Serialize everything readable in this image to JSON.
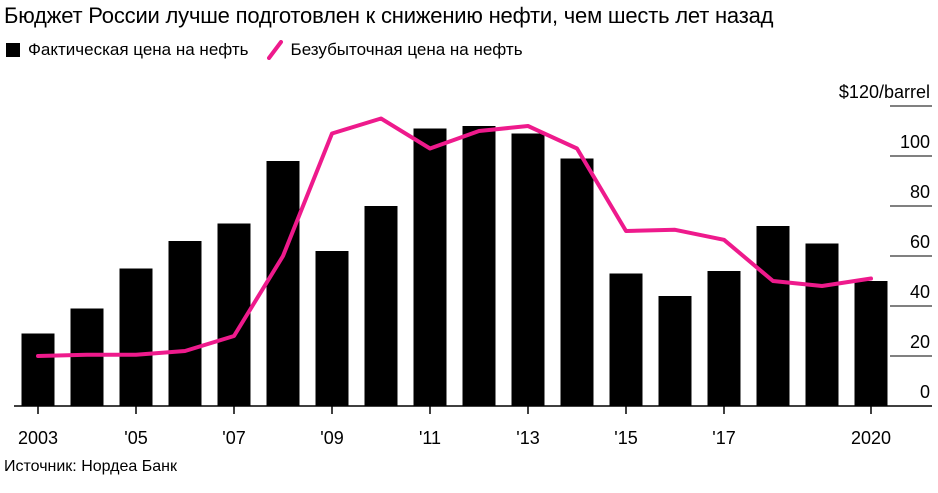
{
  "title": "Бюджет России лучше подготовлен к снижению нефти, чем шесть лет назад",
  "legend": {
    "bar_label": "Фактическая цена на нефть",
    "line_label": "Безубыточная цена на нефть"
  },
  "source": "Источник: Нордеа Банк",
  "colors": {
    "bar": "#000000",
    "line": "#ee1a8c",
    "grid": "#000000"
  },
  "chart_data": {
    "type": "bar",
    "x": [
      2003,
      2004,
      2005,
      2006,
      2007,
      2008,
      2009,
      2010,
      2011,
      2012,
      2013,
      2014,
      2015,
      2016,
      2017,
      2018,
      2019,
      2020
    ],
    "x_tick_labels": [
      {
        "x": 2003,
        "label": "2003"
      },
      {
        "x": 2005,
        "label": "'05"
      },
      {
        "x": 2007,
        "label": "'07"
      },
      {
        "x": 2009,
        "label": "'09"
      },
      {
        "x": 2011,
        "label": "'11"
      },
      {
        "x": 2013,
        "label": "'13"
      },
      {
        "x": 2015,
        "label": "'15"
      },
      {
        "x": 2017,
        "label": "'17"
      },
      {
        "x": 2020,
        "label": "2020"
      }
    ],
    "y_tick_labels": [
      {
        "y": 120,
        "label": "$120/barrel"
      },
      {
        "y": 100,
        "label": "100"
      },
      {
        "y": 80,
        "label": "80"
      },
      {
        "y": 60,
        "label": "60"
      },
      {
        "y": 40,
        "label": "40"
      },
      {
        "y": 20,
        "label": "20"
      },
      {
        "y": 0,
        "label": "0"
      }
    ],
    "ylim": [
      0,
      120
    ],
    "grid": true,
    "legend_position": "top-left",
    "series": [
      {
        "name": "Фактическая цена на нефть",
        "type": "bar",
        "values": [
          29,
          39,
          55,
          66,
          73,
          98,
          62,
          80,
          111,
          112,
          109,
          99,
          53,
          44,
          54,
          72,
          65,
          50
        ]
      },
      {
        "name": "Безубыточная цена на нефть",
        "type": "line",
        "values": [
          20,
          20.5,
          20.5,
          22,
          28,
          60,
          109,
          115,
          103,
          110,
          112,
          103,
          70,
          70.5,
          66.5,
          50,
          48,
          51
        ]
      }
    ]
  }
}
